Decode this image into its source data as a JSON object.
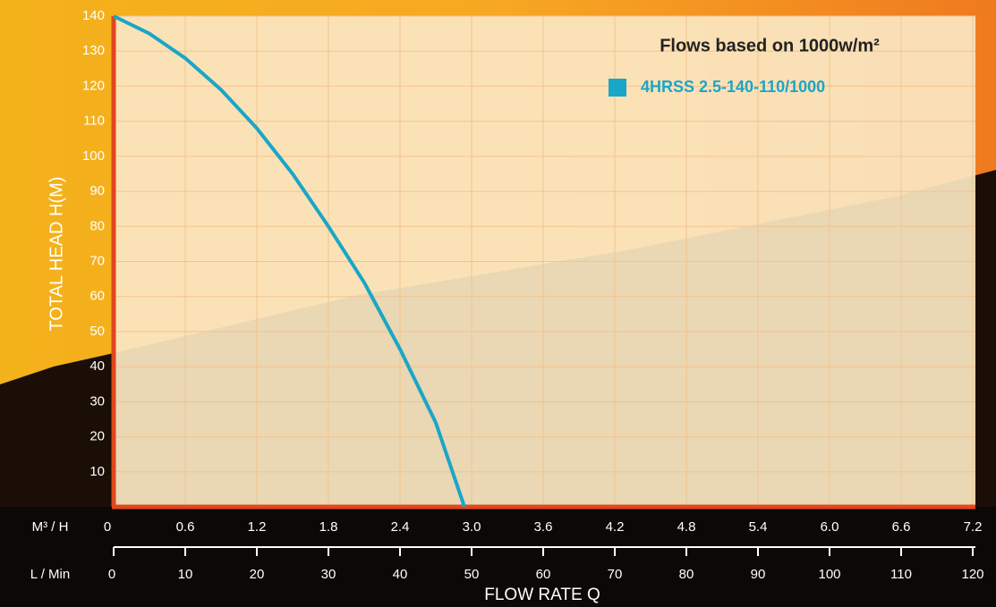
{
  "chart_data": {
    "type": "line",
    "title": "Flows based on 1000w/m²",
    "y_label": "TOTAL HEAD H(M)",
    "x_label": "FLOW RATE Q",
    "x_unit": "M³ / H",
    "x2_unit": "L / Min",
    "x": [
      0,
      0.3,
      0.6,
      0.9,
      1.2,
      1.5,
      1.8,
      2.1,
      2.4,
      2.7,
      2.94
    ],
    "series": [
      {
        "name": "4HRSS 2.5-140-110/1000",
        "color": "#1aa6c8",
        "values": [
          140,
          135,
          128,
          119,
          108,
          95,
          80,
          64,
          45,
          24,
          0
        ]
      }
    ],
    "xlim": [
      0,
      7.2
    ],
    "xticks": [
      0,
      0.6,
      1.2,
      1.8,
      2.4,
      {
        "value": 3,
        "label": "3.0"
      },
      3.6,
      4.2,
      4.8,
      5.4,
      {
        "value": 6,
        "label": "6.0"
      },
      6.6,
      7.2
    ],
    "x2lim": [
      0,
      120
    ],
    "x2ticks": [
      0,
      10,
      20,
      30,
      40,
      50,
      60,
      70,
      80,
      90,
      100,
      110,
      120
    ],
    "ylim": [
      0,
      140
    ],
    "yticks": [
      10,
      20,
      30,
      40,
      50,
      60,
      70,
      80,
      90,
      100,
      110,
      120,
      130,
      140
    ],
    "grid": true,
    "legend": "top-right"
  }
}
